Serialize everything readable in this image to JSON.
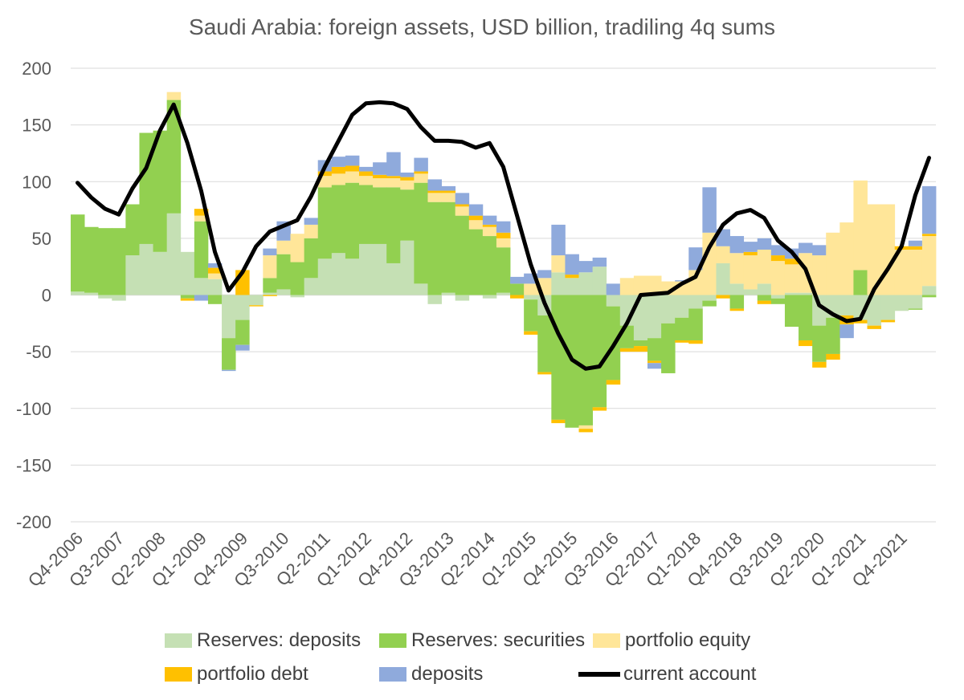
{
  "chart_data": {
    "type": "bar",
    "stacked": true,
    "title": "Saudi Arabia: foreign assets, USD billion, tradiling 4q sums",
    "xlabel": "",
    "ylabel": "",
    "ylim": [
      -200,
      200
    ],
    "yticks": [
      200,
      150,
      100,
      50,
      0,
      -50,
      -100,
      -150,
      -200
    ],
    "categories": [
      "Q4-2006",
      "Q1-2007",
      "Q2-2007",
      "Q3-2007",
      "Q4-2007",
      "Q1-2008",
      "Q2-2008",
      "Q3-2008",
      "Q4-2008",
      "Q1-2009",
      "Q2-2009",
      "Q3-2009",
      "Q4-2009",
      "Q1-2010",
      "Q2-2010",
      "Q3-2010",
      "Q4-2010",
      "Q1-2011",
      "Q2-2011",
      "Q3-2011",
      "Q4-2011",
      "Q1-2012",
      "Q2-2012",
      "Q3-2012",
      "Q4-2012",
      "Q1-2013",
      "Q2-2013",
      "Q3-2013",
      "Q4-2013",
      "Q1-2014",
      "Q2-2014",
      "Q3-2014",
      "Q4-2014",
      "Q1-2015",
      "Q2-2015",
      "Q3-2015",
      "Q4-2015",
      "Q1-2016",
      "Q2-2016",
      "Q3-2016",
      "Q4-2016",
      "Q1-2017",
      "Q2-2017",
      "Q3-2017",
      "Q4-2017",
      "Q1-2018",
      "Q2-2018",
      "Q3-2018",
      "Q4-2018",
      "Q1-2019",
      "Q2-2019",
      "Q3-2019",
      "Q4-2019",
      "Q1-2020",
      "Q2-2020",
      "Q3-2020",
      "Q4-2020",
      "Q1-2021",
      "Q2-2021",
      "Q3-2021",
      "Q4-2021",
      "Q1-2022",
      "Q2-2022"
    ],
    "tick_labels": [
      "Q4-2006",
      "Q3-2007",
      "Q2-2008",
      "Q1-2009",
      "Q4-2009",
      "Q3-2010",
      "Q2-2011",
      "Q1-2012",
      "Q4-2012",
      "Q3-2013",
      "Q2-2014",
      "Q1-2015",
      "Q4-2015",
      "Q3-2016",
      "Q2-2017",
      "Q1-2018",
      "Q4-2018",
      "Q3-2019",
      "Q2-2020",
      "Q1-2021",
      "Q4-2021"
    ],
    "series": [
      {
        "name": "Reserves: deposits",
        "color": "#c5e0b4",
        "values": [
          3,
          2,
          -3,
          -5,
          35,
          45,
          38,
          72,
          38,
          15,
          14,
          -38,
          -22,
          -9,
          2,
          5,
          -2,
          15,
          32,
          37,
          32,
          45,
          45,
          28,
          48,
          10,
          -8,
          2,
          -5,
          0,
          -3,
          2,
          0,
          -4,
          -18,
          20,
          15,
          20,
          25,
          -10,
          -27,
          -40,
          -38,
          -25,
          -20,
          -12,
          -5,
          28,
          10,
          5,
          10,
          -3,
          2,
          2,
          -27,
          -20,
          -18,
          -22,
          -27,
          -22,
          -14,
          -12,
          8
        ]
      },
      {
        "name": "Reserves: securities",
        "color": "#92d050",
        "values": [
          68,
          58,
          59,
          59,
          45,
          98,
          107,
          100,
          -3,
          50,
          -8,
          -28,
          -22,
          0,
          13,
          31,
          29,
          35,
          63,
          60,
          67,
          52,
          50,
          67,
          45,
          89,
          82,
          80,
          70,
          58,
          52,
          40,
          10,
          -28,
          -50,
          -110,
          -117,
          -115,
          -99,
          -65,
          -20,
          -5,
          -20,
          -44,
          -20,
          -28,
          -5,
          0,
          -12,
          0,
          -5,
          -5,
          -28,
          -40,
          -32,
          -32,
          0,
          22,
          0,
          0,
          0,
          -1,
          -2
        ]
      },
      {
        "name": "portfolio equity",
        "color": "#ffe699",
        "values": [
          0,
          0,
          0,
          0,
          0,
          0,
          0,
          7,
          0,
          5,
          5,
          0,
          0,
          0,
          20,
          12,
          25,
          12,
          10,
          10,
          10,
          8,
          8,
          8,
          8,
          8,
          8,
          8,
          8,
          8,
          8,
          8,
          0,
          10,
          15,
          15,
          0,
          -3,
          0,
          0,
          15,
          17,
          17,
          12,
          12,
          22,
          55,
          15,
          27,
          30,
          30,
          30,
          25,
          35,
          35,
          55,
          64,
          79,
          80,
          80,
          40,
          40,
          44
        ]
      },
      {
        "name": "portfolio debt",
        "color": "#ffc000",
        "values": [
          0,
          0,
          0,
          0,
          0,
          0,
          0,
          0,
          -2,
          6,
          5,
          0,
          22,
          -1,
          -1,
          0,
          0,
          0,
          4,
          6,
          5,
          4,
          3,
          2,
          3,
          2,
          2,
          2,
          2,
          4,
          2,
          5,
          -3,
          -3,
          -2,
          -3,
          3,
          -3,
          -3,
          -4,
          -3,
          -5,
          -2,
          0,
          -2,
          -3,
          0,
          -3,
          -2,
          3,
          -3,
          5,
          5,
          -5,
          -5,
          -5,
          -8,
          -3,
          -3,
          -2,
          3,
          3,
          2
        ]
      },
      {
        "name": "deposits",
        "color": "#8faadc",
        "values": [
          0,
          0,
          0,
          0,
          0,
          0,
          0,
          0,
          0,
          -5,
          4,
          -1,
          -5,
          0,
          6,
          17,
          0,
          6,
          10,
          9,
          9,
          4,
          11,
          21,
          4,
          12,
          10,
          4,
          10,
          10,
          8,
          10,
          6,
          9,
          7,
          27,
          18,
          10,
          8,
          10,
          0,
          0,
          -5,
          0,
          1,
          20,
          40,
          15,
          15,
          9,
          10,
          9,
          9,
          9,
          9,
          0,
          -12,
          0,
          0,
          0,
          0,
          5,
          42
        ]
      }
    ],
    "line_series": {
      "name": "current account",
      "color": "#000000",
      "values": [
        99,
        86,
        76,
        71,
        94,
        112,
        145,
        168,
        134,
        92,
        38,
        4,
        20,
        43,
        56,
        61,
        66,
        87,
        113,
        136,
        159,
        169,
        170,
        169,
        164,
        148,
        136,
        136,
        135,
        130,
        134,
        113,
        70,
        27,
        -7,
        -34,
        -57,
        -65,
        -63,
        -45,
        -25,
        0,
        1,
        2,
        10,
        16,
        42,
        62,
        72,
        75,
        68,
        48,
        38,
        23,
        -9,
        -17,
        -23,
        -21,
        5,
        23,
        43,
        88,
        121
      ]
    },
    "legend": [
      {
        "label": "Reserves: deposits",
        "color": "#c5e0b4"
      },
      {
        "label": "Reserves: securities",
        "color": "#92d050"
      },
      {
        "label": "portfolio equity",
        "color": "#ffe699"
      },
      {
        "label": "portfolio debt",
        "color": "#ffc000"
      },
      {
        "label": "deposits",
        "color": "#8faadc"
      },
      {
        "label": "current account",
        "color": "#000000"
      }
    ],
    "legend_position": "bottom",
    "grid": true
  }
}
